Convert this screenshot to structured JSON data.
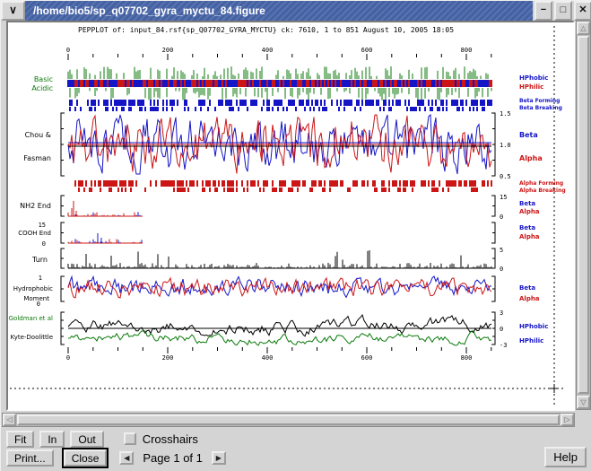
{
  "titlebar": {
    "title": "/home/bio5/sp_q07702_gyra_myctu_84.figure"
  },
  "icons": {
    "menu": "∨",
    "minimize": "−",
    "maximize": "□",
    "close": "✕",
    "up": "△",
    "down": "▽",
    "left": "◁",
    "right": "▷",
    "page_prev": "◀",
    "page_next": "▶"
  },
  "colors": {
    "blue": "#1515c8",
    "red": "#cc1616",
    "green": "#0a7a0a",
    "black": "#000000",
    "titlebar": "#45619f"
  },
  "plot": {
    "header": "PEPPLOT of: input_84.rsf{sp_Q07702_GYRA_MYCTU} ck: 7610, 1 to 851 August 10, 2005 18:05",
    "sequence_range": "1 to 851",
    "axis_ticks": {
      "t0": "0",
      "t200": "200",
      "t400": "400",
      "t600": "600",
      "t800": "800"
    },
    "left": {
      "basic": "Basic",
      "acidic": "Acidic",
      "chou": "Chou &",
      "fasman": "Fasman",
      "nh2": "NH2 End",
      "cooh_top": "15",
      "cooh": "COOH End",
      "cooh_bot": "0",
      "turn": "Turn",
      "hyd_top": "1",
      "hyd": "Hydrophobic",
      "moment": "Moment",
      "hyd_bot": "0",
      "goldman": "Goldman et al",
      "kyte": "Kyte-Doolittle"
    },
    "right": {
      "hphobic1": "HPhobic",
      "hphilic1": "HPhilic",
      "beta_forming": "Beta Forming",
      "beta_breaking": "Beta Breaking",
      "cf_top": "1.5",
      "cf_mid": "1.0",
      "cf_bot": "0.5",
      "beta1": "Beta",
      "alpha1": "Alpha",
      "alpha_forming": "Alpha Forming",
      "alpha_breaking": "Alpha Breaking",
      "nh2_top": "15",
      "nh2_bot": "0",
      "beta2": "Beta",
      "alpha2": "Alpha",
      "beta3": "Beta",
      "alpha3": "Alpha",
      "turn_top": "5",
      "turn_bot": "0",
      "beta4": "Beta",
      "alpha4": "Alpha",
      "kd_top": "3",
      "kd_mid": "0",
      "kd_bot": "-3",
      "hphobic2": "HPhobic",
      "hphilic2": "HPhilic"
    }
  },
  "controls": {
    "fit": "Fit",
    "in": "In",
    "out": "Out",
    "crosshairs": "Crosshairs",
    "print": "Print...",
    "close": "Close",
    "page": "Page 1 of 1",
    "help": "Help"
  }
}
